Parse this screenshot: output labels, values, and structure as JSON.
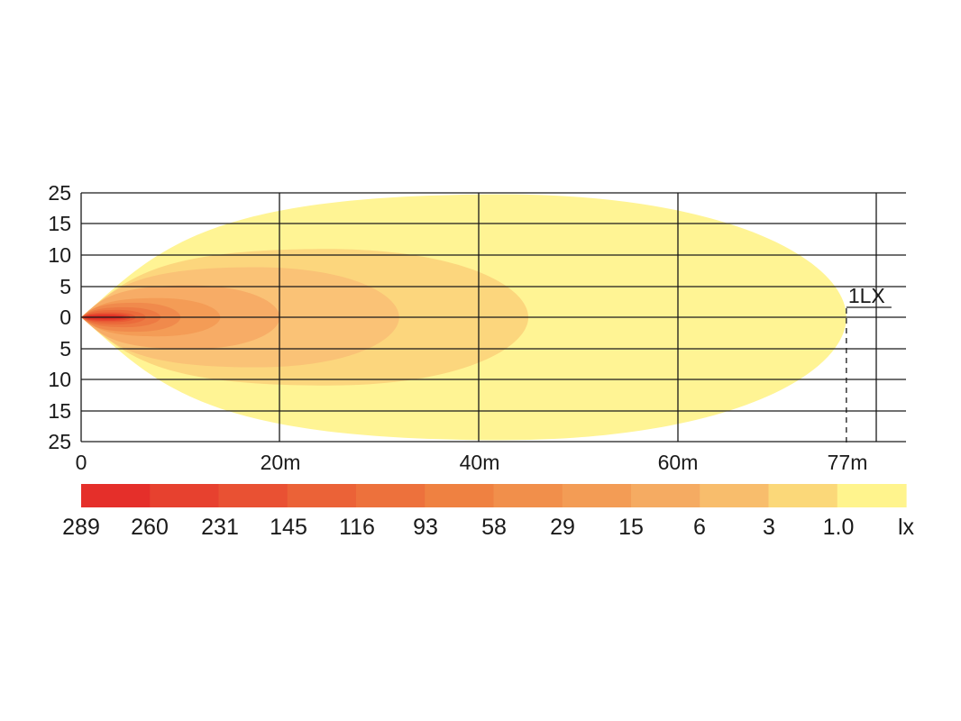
{
  "chart_data": {
    "type": "heatmap",
    "title": "",
    "x_ticks": [
      "0",
      "20m",
      "40m",
      "60m",
      "77m"
    ],
    "x_tick_values": [
      0,
      20,
      40,
      60,
      77
    ],
    "y_ticks": [
      "25",
      "15",
      "10",
      "5",
      "0",
      "5",
      "10",
      "15",
      "25"
    ],
    "xlim": [
      0,
      83
    ],
    "grid": true,
    "annotation": {
      "label": "1LX",
      "x": 77
    },
    "contours": [
      {
        "lux": 1.0,
        "color": "#fff494",
        "tip": 77,
        "half_width": 13.5
      },
      {
        "lux": 3,
        "color": "#fcd67d",
        "tip": 45,
        "half_width": 7.5
      },
      {
        "lux": 6,
        "color": "#fac276",
        "tip": 32,
        "half_width": 5.5
      },
      {
        "lux": 15,
        "color": "#f7ac66",
        "tip": 20,
        "half_width": 3.5
      },
      {
        "lux": 29,
        "color": "#f49c56",
        "tip": 14,
        "half_width": 2.1
      },
      {
        "lux": 58,
        "color": "#f08a4c",
        "tip": 10,
        "half_width": 1.6
      },
      {
        "lux": 93,
        "color": "#ed7a43",
        "tip": 8,
        "half_width": 1.1
      },
      {
        "lux": 116,
        "color": "#eb6b3b",
        "tip": 6.5,
        "half_width": 0.8
      },
      {
        "lux": 145,
        "color": "#e95a34",
        "tip": 5.5,
        "half_width": 0.55
      },
      {
        "lux": 231,
        "color": "#e6472e",
        "tip": 5,
        "half_width": 0.4
      },
      {
        "lux": 260,
        "color": "#e33a29",
        "tip": 4.6,
        "half_width": 0.28
      },
      {
        "lux": 289,
        "color": "#e02c24",
        "tip": 4.3,
        "half_width": 0.18
      }
    ],
    "legend": {
      "labels": [
        "289",
        "260",
        "231",
        "145",
        "116",
        "93",
        "58",
        "29",
        "15",
        "6",
        "3",
        "1.0"
      ],
      "colors": [
        "#e52f2a",
        "#e7412f",
        "#e95133",
        "#eb6237",
        "#ed713c",
        "#ef8141",
        "#f18f4b",
        "#f39c55",
        "#f5ab62",
        "#f8bd6c",
        "#fbd879",
        "#fff48d"
      ],
      "unit": "lx"
    }
  }
}
